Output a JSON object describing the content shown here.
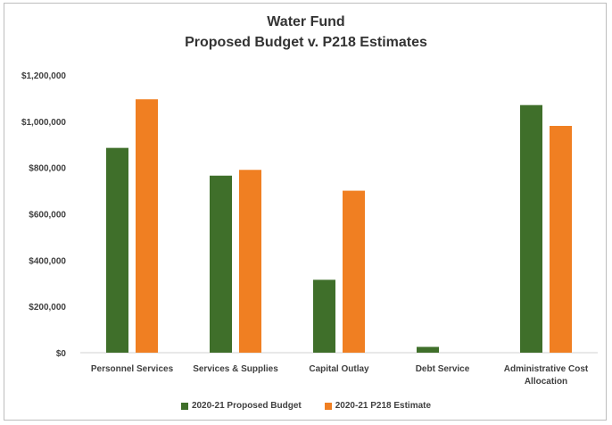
{
  "chart_data": {
    "type": "bar",
    "title": "Water Fund",
    "subtitle": "Proposed Budget v. P218 Estimates",
    "categories": [
      [
        "Personnel Services"
      ],
      [
        "Services & Supplies"
      ],
      [
        "Capital Outlay"
      ],
      [
        "Debt Service"
      ],
      [
        "Administrative Cost",
        "Allocation"
      ]
    ],
    "series": [
      {
        "name": "2020-21 Proposed Budget",
        "color": "#3f6f2a",
        "values": [
          885000,
          765000,
          315000,
          25000,
          1070000
        ]
      },
      {
        "name": "2020-21 P218 Estimate",
        "color": "#f07f22",
        "values": [
          1095000,
          790000,
          700000,
          0,
          980000
        ]
      }
    ],
    "yticks": [
      "$0",
      "$200,000",
      "$400,000",
      "$600,000",
      "$800,000",
      "$1,000,000",
      "$1,200,000"
    ],
    "ylim": [
      0,
      1200000
    ],
    "grid": false,
    "legend_position": "bottom"
  }
}
